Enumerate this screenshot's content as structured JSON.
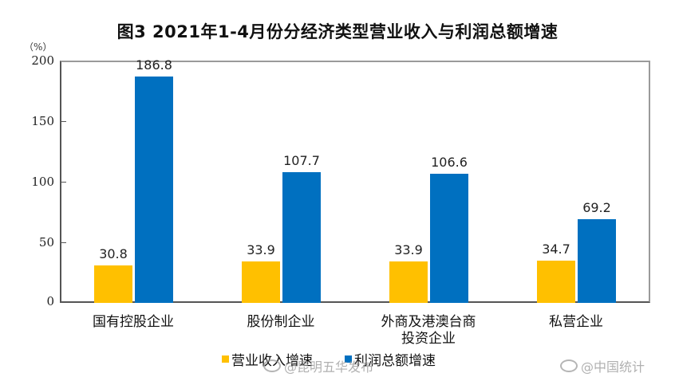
{
  "chart_data": {
    "type": "bar",
    "title": "图3  2021年1-4月份分经济类型营业收入与利润总额增速",
    "ylabel": "（%）",
    "xlabel": "",
    "ylim": [
      0,
      200
    ],
    "yticks": [
      "0",
      "50",
      "100",
      "150",
      "200"
    ],
    "categories": [
      "国有控股企业",
      "股份制企业",
      "外商及港澳台商投资企业",
      "私营企业"
    ],
    "category_lines": [
      [
        "国有控股企业"
      ],
      [
        "股份制企业"
      ],
      [
        "外商及港澳台商",
        "投资企业"
      ],
      [
        "私营企业"
      ]
    ],
    "series": [
      {
        "name": "营业收入增速",
        "color": "#ffc000",
        "values": [
          30.8,
          33.9,
          33.9,
          34.7
        ],
        "labels": [
          "30.8",
          "33.9",
          "33.9",
          "34.7"
        ]
      },
      {
        "name": "利润总额增速",
        "color": "#0070c0",
        "values": [
          186.8,
          107.7,
          106.6,
          69.2
        ],
        "labels": [
          "186.8",
          "107.7",
          "106.6",
          "69.2"
        ]
      }
    ],
    "legend_position": "bottom",
    "grid": false,
    "data_labels": true
  },
  "watermarks": [
    "@昆明五华发布",
    "@中国统计"
  ]
}
